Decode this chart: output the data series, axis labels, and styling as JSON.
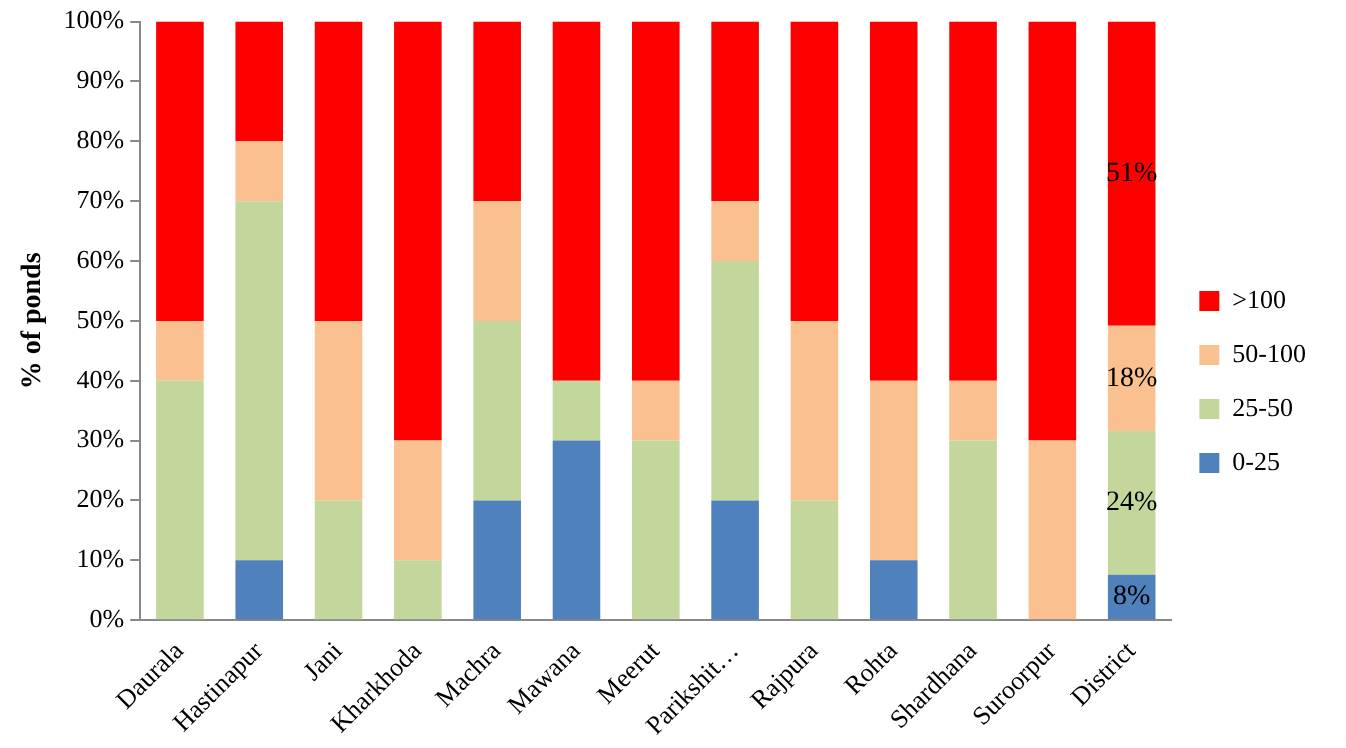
{
  "chart_data": {
    "type": "bar",
    "stacked": true,
    "ylabel": "% of ponds",
    "categories": [
      "Daurala",
      "Hastinapur",
      "Jani",
      "Kharkhoda",
      "Machra",
      "Mawana",
      "Meerut",
      "Parikshit…",
      "Rajpura",
      "Rohta",
      "Shardhana",
      "Suroorpur",
      "District"
    ],
    "series": [
      {
        "name": "0-25",
        "color": "#4f81bd",
        "values": [
          0,
          10,
          0,
          0,
          20,
          30,
          0,
          20,
          0,
          10,
          0,
          0,
          7.6
        ],
        "value_labels": [
          null,
          null,
          null,
          null,
          null,
          null,
          null,
          null,
          null,
          null,
          null,
          null,
          "8%"
        ]
      },
      {
        "name": "25-50",
        "color": "#c3d69b",
        "values": [
          40,
          60,
          20,
          10,
          30,
          10,
          30,
          40,
          20,
          0,
          30,
          0,
          24
        ],
        "value_labels": [
          null,
          null,
          null,
          null,
          null,
          null,
          null,
          null,
          null,
          null,
          null,
          null,
          "24%"
        ]
      },
      {
        "name": "50-100",
        "color": "#fac090",
        "values": [
          10,
          10,
          30,
          20,
          20,
          0,
          10,
          10,
          30,
          30,
          10,
          30,
          17.6
        ],
        "value_labels": [
          null,
          null,
          null,
          null,
          null,
          null,
          null,
          null,
          null,
          null,
          null,
          null,
          "18%"
        ]
      },
      {
        "name": ">100",
        "color": "#ff0000",
        "values": [
          50,
          20,
          50,
          70,
          30,
          60,
          60,
          30,
          50,
          60,
          60,
          70,
          50.8
        ],
        "value_labels": [
          null,
          null,
          null,
          null,
          null,
          null,
          null,
          null,
          null,
          null,
          null,
          null,
          "51%"
        ]
      }
    ],
    "ylim": [
      0,
      100
    ],
    "yticks": [
      {
        "value": 0,
        "label": "0%"
      },
      {
        "value": 10,
        "label": "10%"
      },
      {
        "value": 20,
        "label": "20%"
      },
      {
        "value": 30,
        "label": "30%"
      },
      {
        "value": 40,
        "label": "40%"
      },
      {
        "value": 50,
        "label": "50%"
      },
      {
        "value": 60,
        "label": "60%"
      },
      {
        "value": 70,
        "label": "70%"
      },
      {
        "value": 80,
        "label": "80%"
      },
      {
        "value": 90,
        "label": "90%"
      },
      {
        "value": 100,
        "label": "100%"
      }
    ],
    "grid": false,
    "legend": "right"
  }
}
